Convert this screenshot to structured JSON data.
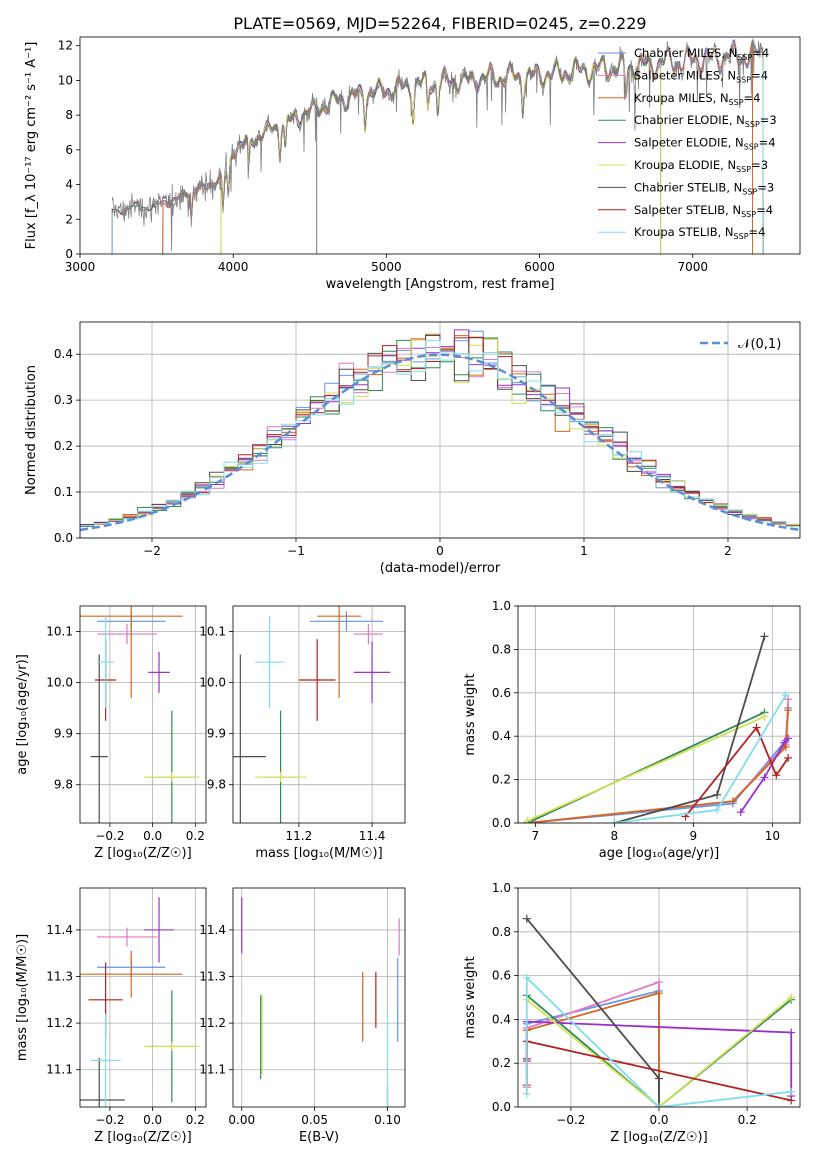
{
  "title": "PLATE=0569, MJD=52264, FIBERID=0245, z=0.229",
  "colors": {
    "Chabrier MILES": "#6495ed",
    "Salpeter MILES": "#e377c2",
    "Kroupa MILES": "#d2691e",
    "Chabrier ELODIE": "#2e8b57",
    "Salpeter ELODIE": "#9932cc",
    "Kroupa ELODIE": "#d4e157",
    "Chabrier STELIB": "#4d4d4d",
    "Salpeter STELIB": "#b22222",
    "Kroupa STELIB": "#80deea",
    "normal": "#5b8ed6"
  },
  "chart_data": [
    {
      "type": "line",
      "id": "spectrum",
      "xlabel": "wavelength [Angstrom, rest frame]",
      "ylabel": "Flux [f_λ 10⁻¹⁷ erg cm⁻² s⁻¹ A⁻¹]",
      "xlim": [
        3000,
        7700
      ],
      "ylim": [
        0,
        12.5
      ],
      "xticks": [
        3000,
        4000,
        5000,
        6000,
        7000
      ],
      "yticks": [
        0,
        2,
        4,
        6,
        8,
        10,
        12
      ],
      "grid": false,
      "legend_position": "top-right",
      "continuum": {
        "x": [
          3210,
          3400,
          3550,
          3700,
          3850,
          3950,
          4000,
          4100,
          4250,
          4400,
          4500,
          4700,
          4900,
          5100,
          5300,
          5500,
          5700,
          5900,
          6100,
          6300,
          6500,
          6700,
          6900,
          7100,
          7300,
          7450
        ],
        "y": [
          2.5,
          2.7,
          2.9,
          3.5,
          4.0,
          4.5,
          6.0,
          6.5,
          7.2,
          7.8,
          8.2,
          8.9,
          9.3,
          9.6,
          9.9,
          10.0,
          10.2,
          10.2,
          10.4,
          10.6,
          10.7,
          10.9,
          11.1,
          11.3,
          11.4,
          11.5
        ]
      },
      "data_range": [
        3210,
        7460
      ],
      "series": [
        {
          "name": "Chabrier MILES",
          "nssp": "4",
          "start": 3540,
          "end": 7390
        },
        {
          "name": "Salpeter MILES",
          "nssp": "4",
          "start": 3540,
          "end": 7390
        },
        {
          "name": "Kroupa MILES",
          "nssp": "4",
          "start": 3540,
          "end": 7390
        },
        {
          "name": "Chabrier ELODIE",
          "nssp": "3",
          "start": 3920,
          "end": 6790
        },
        {
          "name": "Salpeter ELODIE",
          "nssp": "4",
          "start": 3920,
          "end": 6790
        },
        {
          "name": "Kroupa ELODIE",
          "nssp": "3",
          "start": 3920,
          "end": 6790
        },
        {
          "name": "Chabrier STELIB",
          "nssp": "3",
          "start": 3210,
          "end": 7460
        },
        {
          "name": "Salpeter STELIB",
          "nssp": "4",
          "start": 3210,
          "end": 7460
        },
        {
          "name": "Kroupa STELIB",
          "nssp": "4",
          "start": 3210,
          "end": 7460
        }
      ]
    },
    {
      "type": "histogram",
      "id": "residuals",
      "xlabel": "(data-model)/error",
      "ylabel": "Normed distribution",
      "xlim": [
        -2.5,
        2.5
      ],
      "ylim": [
        0,
        0.47
      ],
      "xticks": [
        -2,
        -1,
        0,
        1,
        2
      ],
      "yticks": [
        0.0,
        0.1,
        0.2,
        0.3,
        0.4
      ],
      "grid": true,
      "legend_position": "top-right",
      "legend": "𝒩(0,1)",
      "bins": {
        "start": -2.5,
        "width": 0.1,
        "count": 50
      },
      "curve": {
        "name": "N(0,1)",
        "mu": 0,
        "sigma": 1
      }
    },
    {
      "type": "scatter_errorbar",
      "id": "age_vs_Z",
      "xlabel": "Z [log₁₀(Z/Z☉)]",
      "ylabel": "age  [log₁₀(age/yr)]",
      "xlim": [
        -0.34,
        0.25
      ],
      "ylim": [
        9.725,
        10.15
      ],
      "xticks": [
        -0.2,
        0.0,
        0.2
      ],
      "xticklabels": [
        "−0.2",
        "0.0",
        "0.2"
      ],
      "yticks": [
        9.8,
        9.9,
        10.0,
        10.1
      ],
      "grid": true,
      "points": [
        {
          "model": "Chabrier MILES",
          "x": -0.1,
          "y": 10.12,
          "xerr": 0.16,
          "yerr": 0.02
        },
        {
          "model": "Salpeter MILES",
          "x": -0.12,
          "y": 10.095,
          "xerr": 0.14,
          "yerr": 0.02
        },
        {
          "model": "Kroupa MILES",
          "x": -0.1,
          "y": 10.13,
          "xerr": 0.24,
          "yerr": 0.16
        },
        {
          "model": "Chabrier ELODIE",
          "x": 0.09,
          "y": 9.815,
          "xerr": 0.11,
          "yerr": 0.13
        },
        {
          "model": "Salpeter ELODIE",
          "x": 0.03,
          "y": 10.02,
          "xerr": 0.05,
          "yerr": 0.04
        },
        {
          "model": "Kroupa ELODIE",
          "x": 0.09,
          "y": 9.815,
          "xerr": 0.13,
          "yerr": 0.01
        },
        {
          "model": "Chabrier STELIB",
          "x": -0.25,
          "y": 9.855,
          "xerr": 0.04,
          "yerr": 0.2
        },
        {
          "model": "Salpeter STELIB",
          "x": -0.22,
          "y": 10.005,
          "xerr": 0.05,
          "yerr": 0.08
        },
        {
          "model": "Kroupa STELIB",
          "x": -0.22,
          "y": 10.04,
          "xerr": 0.04,
          "yerr": 0.09
        }
      ]
    },
    {
      "type": "scatter_errorbar",
      "id": "age_vs_mass",
      "xlabel": "mass [log₁₀(M/M☉)]",
      "ylabel": "",
      "xlim": [
        11.02,
        11.49
      ],
      "ylim": [
        9.725,
        10.15
      ],
      "xticks": [
        11.2,
        11.4
      ],
      "yticks": [
        9.8,
        9.9,
        10.0,
        10.1
      ],
      "grid": true,
      "points": [
        {
          "model": "Chabrier MILES",
          "x": 11.33,
          "y": 10.12,
          "xerr": 0.1,
          "yerr": 0.02
        },
        {
          "model": "Salpeter MILES",
          "x": 11.39,
          "y": 10.095,
          "xerr": 0.04,
          "yerr": 0.02
        },
        {
          "model": "Kroupa MILES",
          "x": 11.31,
          "y": 10.13,
          "xerr": 0.06,
          "yerr": 0.16
        },
        {
          "model": "Chabrier ELODIE",
          "x": 11.15,
          "y": 9.815,
          "xerr": 0.05,
          "yerr": 0.13
        },
        {
          "model": "Salpeter ELODIE",
          "x": 11.4,
          "y": 10.02,
          "xerr": 0.05,
          "yerr": 0.06
        },
        {
          "model": "Kroupa ELODIE",
          "x": 11.15,
          "y": 9.815,
          "xerr": 0.07,
          "yerr": 0.01
        },
        {
          "model": "Chabrier STELIB",
          "x": 11.04,
          "y": 9.855,
          "xerr": 0.07,
          "yerr": 0.2
        },
        {
          "model": "Salpeter STELIB",
          "x": 11.25,
          "y": 10.005,
          "xerr": 0.05,
          "yerr": 0.08
        },
        {
          "model": "Kroupa STELIB",
          "x": 11.12,
          "y": 10.04,
          "xerr": 0.04,
          "yerr": 0.09
        }
      ]
    },
    {
      "type": "line",
      "id": "mass_weight_vs_age",
      "xlabel": "age  [log₁₀(age/yr)]",
      "ylabel": "mass weight",
      "xlim": [
        6.78,
        10.35
      ],
      "ylim": [
        0,
        1.0
      ],
      "xticks": [
        7,
        8,
        9,
        10
      ],
      "yticks": [
        0.0,
        0.2,
        0.4,
        0.6,
        0.8,
        1.0
      ],
      "grid": true,
      "series": [
        {
          "model": "Chabrier MILES",
          "x": [
            6.9,
            9.5,
            10.17,
            10.2
          ],
          "y": [
            0.0,
            0.09,
            0.38,
            0.53
          ]
        },
        {
          "model": "Salpeter MILES",
          "x": [
            6.9,
            9.5,
            10.17,
            10.2
          ],
          "y": [
            0.0,
            0.1,
            0.36,
            0.57
          ]
        },
        {
          "model": "Kroupa MILES",
          "x": [
            6.9,
            9.5,
            10.17,
            10.2
          ],
          "y": [
            0.0,
            0.1,
            0.35,
            0.52
          ]
        },
        {
          "model": "Chabrier ELODIE",
          "x": [
            6.9,
            9.9
          ],
          "y": [
            0.0,
            0.51
          ]
        },
        {
          "model": "Salpeter ELODIE",
          "x": [
            9.6,
            9.9,
            10.15,
            10.2
          ],
          "y": [
            0.05,
            0.21,
            0.37,
            0.39
          ]
        },
        {
          "model": "Kroupa ELODIE",
          "x": [
            6.9,
            9.9
          ],
          "y": [
            0.01,
            0.49
          ]
        },
        {
          "model": "Chabrier STELIB",
          "x": [
            8.0,
            9.3,
            9.9
          ],
          "y": [
            0.0,
            0.13,
            0.86
          ]
        },
        {
          "model": "Salpeter STELIB",
          "x": [
            8.9,
            9.8,
            10.05,
            10.2
          ],
          "y": [
            0.03,
            0.44,
            0.22,
            0.3
          ]
        },
        {
          "model": "Kroupa STELIB",
          "x": [
            8.0,
            9.3,
            10.17
          ],
          "y": [
            0.0,
            0.06,
            0.59
          ]
        }
      ]
    },
    {
      "type": "scatter_errorbar",
      "id": "mass_vs_Z",
      "xlabel": "Z [log₁₀(Z/Z☉)]",
      "ylabel": "mass [log₁₀(M/M☉)]",
      "xlim": [
        -0.34,
        0.25
      ],
      "ylim": [
        11.02,
        11.49
      ],
      "xticks": [
        -0.2,
        0.0,
        0.2
      ],
      "xticklabels": [
        "−0.2",
        "0.0",
        "0.2"
      ],
      "yticks": [
        11.1,
        11.2,
        11.3,
        11.4
      ],
      "grid": true,
      "points": [
        {
          "model": "Chabrier MILES",
          "x": -0.1,
          "y": 11.32,
          "xerr": 0.16,
          "yerr": 0.02
        },
        {
          "model": "Salpeter MILES",
          "x": -0.12,
          "y": 11.385,
          "xerr": 0.14,
          "yerr": 0.02
        },
        {
          "model": "Kroupa MILES",
          "x": -0.1,
          "y": 11.305,
          "xerr": 0.24,
          "yerr": 0.05
        },
        {
          "model": "Chabrier ELODIE",
          "x": 0.09,
          "y": 11.15,
          "xerr": 0.11,
          "yerr": 0.12
        },
        {
          "model": "Salpeter ELODIE",
          "x": 0.03,
          "y": 11.4,
          "xerr": 0.07,
          "yerr": 0.07
        },
        {
          "model": "Kroupa ELODIE",
          "x": 0.09,
          "y": 11.15,
          "xerr": 0.13,
          "yerr": 0.01
        },
        {
          "model": "Chabrier STELIB",
          "x": -0.25,
          "y": 11.035,
          "xerr": 0.12,
          "yerr": 0.09
        },
        {
          "model": "Salpeter STELIB",
          "x": -0.22,
          "y": 11.25,
          "xerr": 0.08,
          "yerr": 0.08
        },
        {
          "model": "Kroupa STELIB",
          "x": -0.22,
          "y": 11.12,
          "xerr": 0.07,
          "yerr": 0.1
        }
      ]
    },
    {
      "type": "scatter_errorbar",
      "id": "mass_vs_EBV",
      "xlabel": "E(B-V)",
      "ylabel": "",
      "xlim": [
        -0.006,
        0.112
      ],
      "ylim": [
        11.02,
        11.49
      ],
      "xticks": [
        0.0,
        0.05,
        0.1
      ],
      "xticklabels": [
        "0.00",
        "0.05",
        "0.10"
      ],
      "yticks": [
        11.1,
        11.2,
        11.3,
        11.4
      ],
      "grid": true,
      "points": [
        {
          "model": "Chabrier MILES",
          "x": 0.107,
          "y": 11.25,
          "xerr": 0,
          "yerr": 0.09
        },
        {
          "model": "Salpeter MILES",
          "x": 0.108,
          "y": 11.385,
          "xerr": 0,
          "yerr": 0.04
        },
        {
          "model": "Kroupa MILES",
          "x": 0.083,
          "y": 11.235,
          "xerr": 0,
          "yerr": 0.075
        },
        {
          "model": "Chabrier ELODIE",
          "x": 0.013,
          "y": 11.17,
          "xerr": 0,
          "yerr": 0.09
        },
        {
          "model": "Salpeter ELODIE",
          "x": 0.0,
          "y": 11.41,
          "xerr": 0,
          "yerr": 0.06
        },
        {
          "model": "Kroupa ELODIE",
          "x": 0.014,
          "y": 11.175,
          "xerr": 0,
          "yerr": 0.085
        },
        {
          "model": "Chabrier STELIB",
          "x": 0.1,
          "y": 11.035,
          "xerr": 0,
          "yerr": 0.03
        },
        {
          "model": "Salpeter STELIB",
          "x": 0.092,
          "y": 11.25,
          "xerr": 0,
          "yerr": 0.06
        },
        {
          "model": "Kroupa STELIB",
          "x": 0.1,
          "y": 11.12,
          "xerr": 0,
          "yerr": 0.1
        }
      ]
    },
    {
      "type": "line",
      "id": "mass_weight_vs_Z",
      "xlabel": "Z [log₁₀(Z/Z☉)]",
      "ylabel": "mass weight",
      "xlim": [
        -0.32,
        0.32
      ],
      "ylim": [
        0,
        1.0
      ],
      "xticks": [
        -0.2,
        0.0,
        0.2
      ],
      "xticklabels": [
        "−0.2",
        "0.0",
        "0.2"
      ],
      "yticks": [
        0.0,
        0.2,
        0.4,
        0.6,
        0.8,
        1.0
      ],
      "grid": true,
      "series": [
        {
          "model": "Chabrier MILES",
          "x": [
            -0.3,
            -0.3,
            0.0,
            0.0
          ],
          "y": [
            0.1,
            0.38,
            0.53,
            0.0
          ]
        },
        {
          "model": "Salpeter MILES",
          "x": [
            -0.3,
            -0.3,
            0.0,
            0.0
          ],
          "y": [
            0.09,
            0.36,
            0.57,
            0.0
          ]
        },
        {
          "model": "Kroupa MILES",
          "x": [
            -0.3,
            -0.3,
            0.0,
            0.0
          ],
          "y": [
            0.1,
            0.35,
            0.52,
            0.0
          ]
        },
        {
          "model": "Chabrier ELODIE",
          "x": [
            -0.3,
            0.0,
            0.3
          ],
          "y": [
            0.51,
            0.0,
            0.49
          ]
        },
        {
          "model": "Salpeter ELODIE",
          "x": [
            -0.3,
            -0.3,
            0.3,
            0.3
          ],
          "y": [
            0.21,
            0.39,
            0.34,
            0.05
          ]
        },
        {
          "model": "Kroupa ELODIE",
          "x": [
            -0.3,
            0.0,
            0.3
          ],
          "y": [
            0.49,
            0.0,
            0.5
          ]
        },
        {
          "model": "Chabrier STELIB",
          "x": [
            -0.3,
            0.0,
            0.0
          ],
          "y": [
            0.86,
            0.13,
            0.0
          ]
        },
        {
          "model": "Salpeter STELIB",
          "x": [
            -0.3,
            -0.3,
            0.3
          ],
          "y": [
            0.22,
            0.3,
            0.03
          ]
        },
        {
          "model": "Kroupa STELIB",
          "x": [
            -0.3,
            -0.3,
            0.0,
            0.3
          ],
          "y": [
            0.06,
            0.59,
            0.0,
            0.07
          ]
        }
      ]
    }
  ]
}
